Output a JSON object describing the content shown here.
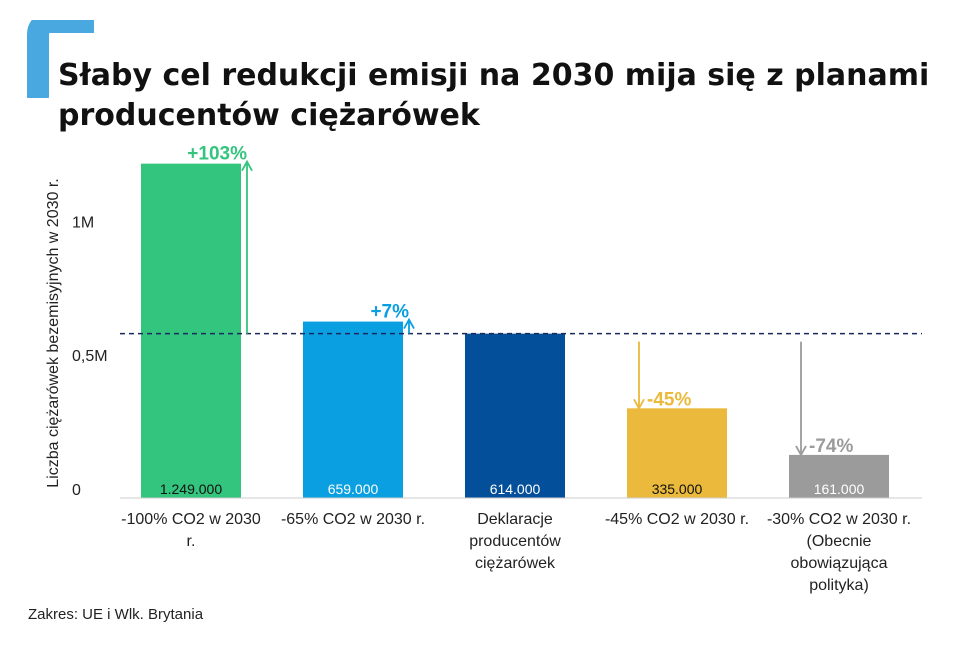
{
  "header": {
    "title": "Słaby cel redukcji emisji na 2030 mija się z planami producentów ciężarówek",
    "brand_color": "#4aa8e0"
  },
  "footer": {
    "source": "Zakres: UE i Wlk. Brytania"
  },
  "chart_data": {
    "type": "bar",
    "ylabel": "Liczba ciężarówek bezemisyjnych w 2030 r.",
    "ylim": [
      0,
      1300000
    ],
    "yticks": [
      {
        "value": 0,
        "label": "0"
      },
      {
        "value": 500000,
        "label": "0,5M"
      },
      {
        "value": 1000000,
        "label": "1M"
      }
    ],
    "reference_value": 614000,
    "categories": [
      [
        "-100% CO2 w 2030",
        "r."
      ],
      [
        "-65% CO2 w 2030 r."
      ],
      [
        "Deklaracje",
        "producentów",
        "ciężarówek"
      ],
      [
        "-45% CO2 w 2030 r."
      ],
      [
        "-30% CO2 w 2030 r.",
        "(Obecnie",
        "obowiązująca",
        "polityka)"
      ]
    ],
    "values": [
      1249000,
      659000,
      614000,
      335000,
      161000
    ],
    "value_labels": [
      "1.249.000",
      "659.000",
      "614.000",
      "335.000",
      "161.000"
    ],
    "change_labels": [
      "+103%",
      "+7%",
      "",
      "-45%",
      "-74%"
    ],
    "colors": [
      "#33c47d",
      "#0a9fe0",
      "#044f9a",
      "#ebb93b",
      "#9b9b9b"
    ],
    "value_label_colors": [
      "#111111",
      "#ffffff",
      "#ffffff",
      "#111111",
      "#ffffff"
    ]
  }
}
